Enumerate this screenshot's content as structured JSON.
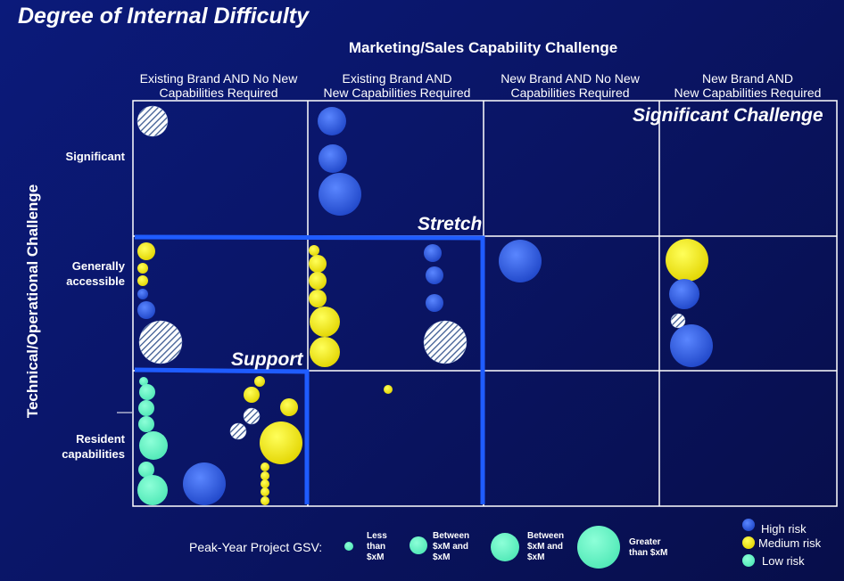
{
  "title": "Degree of Internal Difficulty",
  "x_axis_title": "Marketing/Sales Capability Challenge",
  "y_axis_title": "Technical/Operational Challenge",
  "columns": [
    {
      "line1": "Existing Brand AND No New",
      "line2": "Capabilities Required"
    },
    {
      "line1": "Existing Brand AND",
      "line2": "New Capabilities Required"
    },
    {
      "line1": "New Brand AND No New",
      "line2": "Capabilities Required"
    },
    {
      "line1": "New Brand AND",
      "line2": "New Capabilities Required"
    }
  ],
  "rows": [
    {
      "line1": "Significant",
      "line2": ""
    },
    {
      "line1": "Generally",
      "line2": "accessible"
    },
    {
      "line1": "Resident",
      "line2": "capabilities"
    }
  ],
  "zones": {
    "significant": "Significant Challenge",
    "stretch": "Stretch",
    "support": "Support"
  },
  "legend": {
    "size_title": "Peak-Year Project GSV:",
    "sizes": [
      {
        "line1": "Less",
        "line2": "than",
        "line3": "$xM"
      },
      {
        "line1": "Between",
        "line2": "$xM and",
        "line3": "$xM"
      },
      {
        "line1": "Between",
        "line2": "$xM and",
        "line3": "$xM"
      },
      {
        "line1": "Greater",
        "line2": "than $xM",
        "line3": ""
      }
    ],
    "risks": [
      {
        "label": "High risk",
        "color": "#2f5fe0"
      },
      {
        "label": "Medium risk",
        "color": "#f2ec00"
      },
      {
        "label": "Low risk",
        "color": "#5ff2c2"
      }
    ]
  },
  "colors": {
    "high": "#2f5fe0",
    "medium": "#f2ec00",
    "low": "#5ff2c2",
    "boundary": "#1f5cff",
    "grid": "#ffffff"
  }
}
